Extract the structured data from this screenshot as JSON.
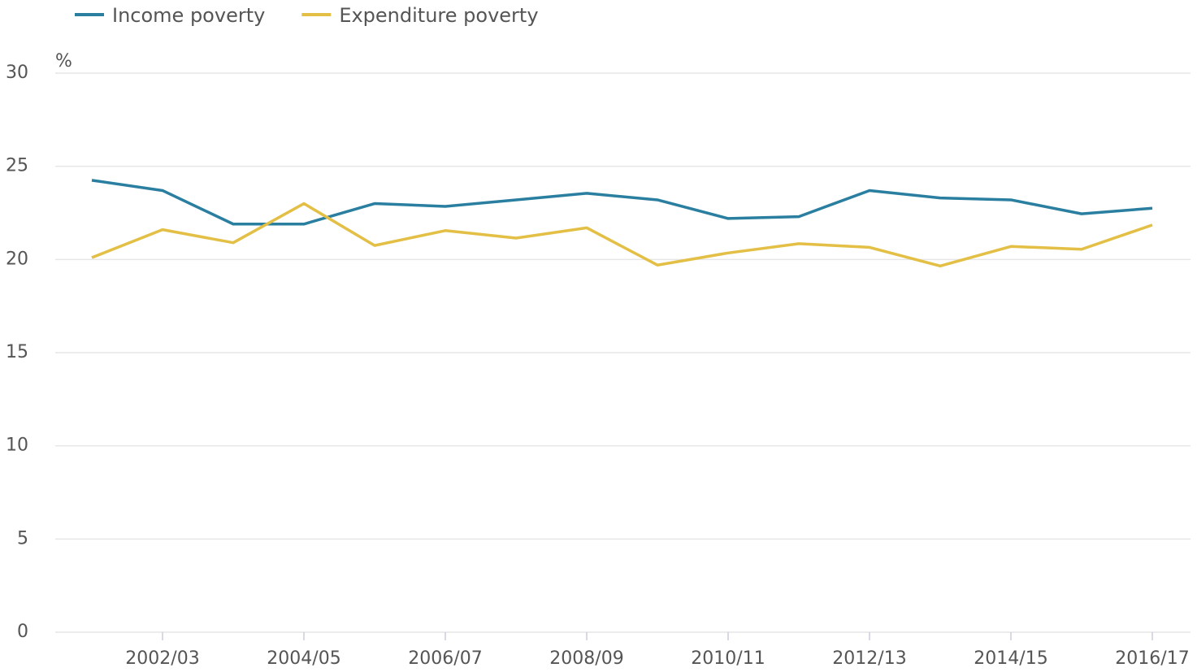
{
  "chart_data": {
    "type": "line",
    "y_unit": "%",
    "categories": [
      null,
      "2002/03",
      null,
      "2004/05",
      null,
      "2006/07",
      null,
      "2008/09",
      null,
      "2010/11",
      null,
      "2012/13",
      null,
      "2014/15",
      null,
      "2016/17"
    ],
    "series": [
      {
        "name": "Income poverty",
        "color": "#2a7fa0",
        "values": [
          24.25,
          23.7,
          21.9,
          21.9,
          23.0,
          22.85,
          23.2,
          23.55,
          23.2,
          22.2,
          22.3,
          23.7,
          23.3,
          23.2,
          22.45,
          22.75
        ]
      },
      {
        "name": "Expenditure poverty",
        "color": "#e3bf45",
        "values": [
          20.1,
          21.6,
          20.9,
          23.0,
          20.75,
          21.55,
          21.15,
          21.7,
          19.7,
          20.35,
          20.85,
          20.65,
          19.65,
          20.7,
          20.55,
          21.85
        ]
      }
    ],
    "ylim": [
      0,
      30
    ],
    "yticks": [
      0,
      5,
      10,
      15,
      20,
      25,
      30
    ],
    "grid": true,
    "legend": "top-left"
  }
}
